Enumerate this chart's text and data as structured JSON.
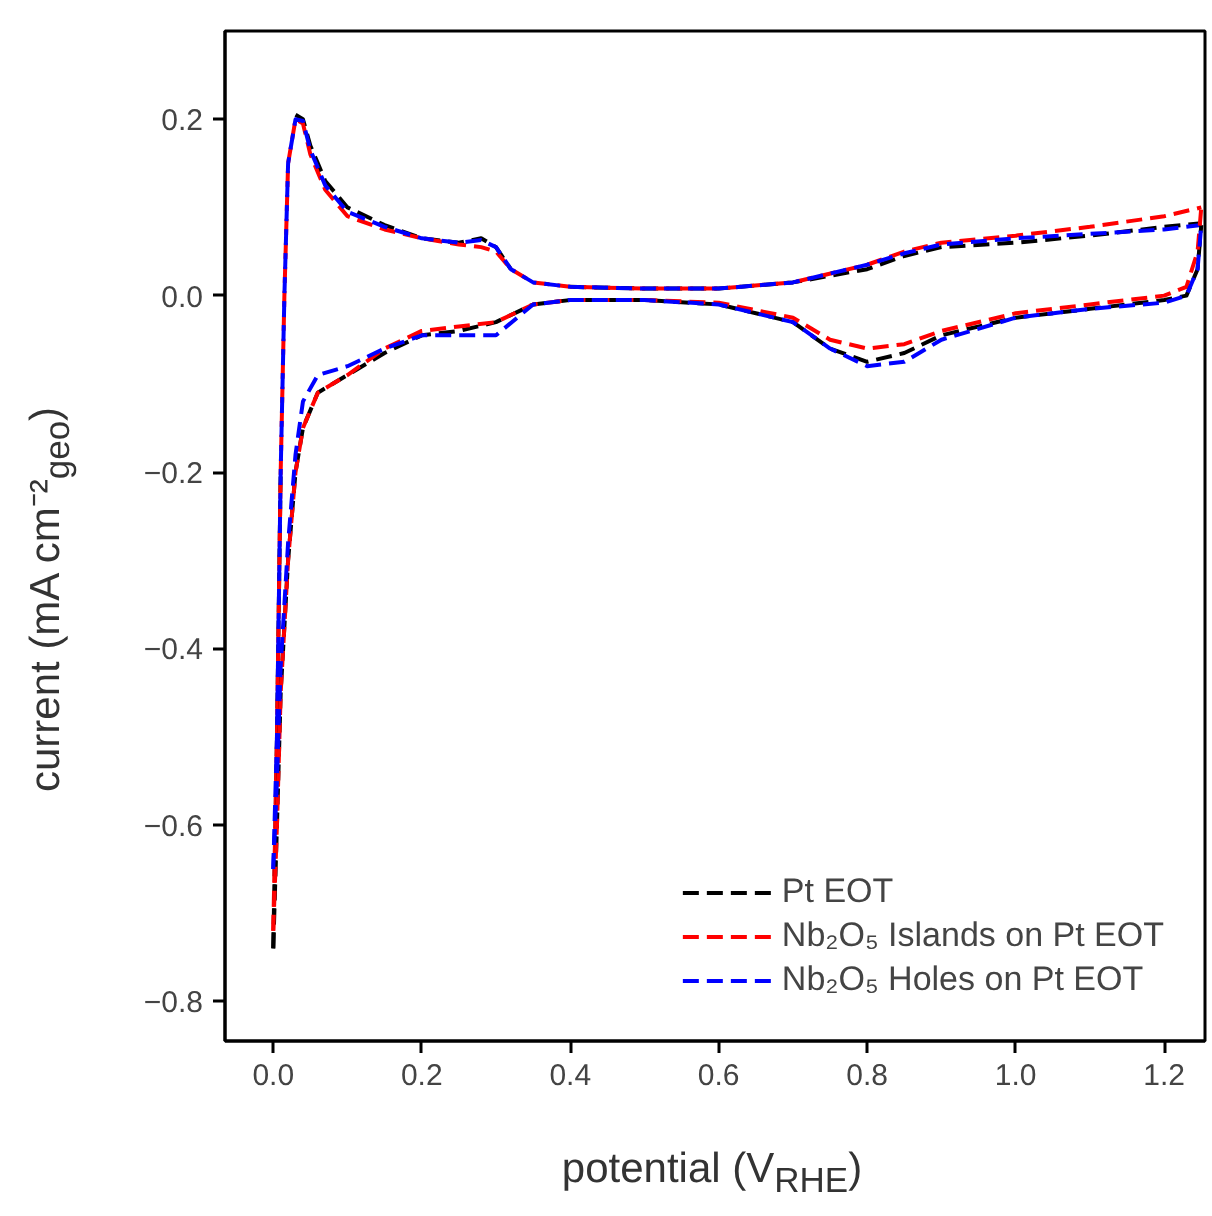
{
  "chart_data": {
    "type": "line",
    "xlabel": "potential (V$_{RHE}$)",
    "ylabel": "current (mA cm⁻²$_{geo}$)",
    "xlim": [
      -0.065,
      1.255
    ],
    "ylim": [
      -0.845,
      0.3
    ],
    "xticks": [
      {
        "value": 0.0,
        "label": "0.0"
      },
      {
        "value": 0.2,
        "label": "0.2"
      },
      {
        "value": 0.4,
        "label": "0.4"
      },
      {
        "value": 0.6,
        "label": "0.6"
      },
      {
        "value": 0.8,
        "label": "0.8"
      },
      {
        "value": 1.0,
        "label": "1.0"
      },
      {
        "value": 1.2,
        "label": "1.2"
      }
    ],
    "yticks": [
      {
        "value": -0.8,
        "label": "−0.8"
      },
      {
        "value": -0.6,
        "label": "−0.6"
      },
      {
        "value": -0.4,
        "label": "−0.4"
      },
      {
        "value": -0.2,
        "label": "−0.2"
      },
      {
        "value": 0.0,
        "label": "0.0"
      },
      {
        "value": 0.2,
        "label": "0.2"
      }
    ],
    "grid": false,
    "legend": "bottom right",
    "line_style": "dashed",
    "marker": "none",
    "series": [
      {
        "name": "Pt EOT",
        "color": "#000000",
        "x": [
          0.0,
          0.005,
          0.01,
          0.015,
          0.02,
          0.03,
          0.04,
          0.05,
          0.07,
          0.1,
          0.15,
          0.2,
          0.25,
          0.28,
          0.3,
          0.32,
          0.35,
          0.4,
          0.5,
          0.6,
          0.7,
          0.8,
          0.85,
          0.9,
          1.0,
          1.1,
          1.2,
          1.25
        ],
        "values": [
          -0.74,
          -0.5,
          -0.2,
          null,
          null,
          0.205,
          0.2,
          0.17,
          0.13,
          0.1,
          0.08,
          0.065,
          0.06,
          0.065,
          0.055,
          0.03,
          null,
          0.01,
          0.008,
          0.008,
          0.015,
          0.03,
          0.045,
          0.055,
          0.06,
          0.068,
          0.078,
          0.082
        ]
      },
      {
        "name": "Nb₂O₅ Islands on Pt EOT",
        "color": "#ff0000",
        "x": [
          0.0,
          0.005,
          0.01,
          0.015,
          0.02,
          0.03,
          0.04,
          0.05,
          0.07,
          0.1,
          0.15,
          0.2,
          0.25,
          0.28,
          0.3,
          0.32,
          0.35,
          0.4,
          0.5,
          0.6,
          0.7,
          0.8,
          0.85,
          0.9,
          1.0,
          1.1,
          1.2,
          1.25
        ],
        "values": [
          -0.72,
          -0.5,
          -0.2,
          0.0,
          0.15,
          0.2,
          0.195,
          0.16,
          0.12,
          0.09,
          0.075,
          0.065,
          0.058,
          0.055,
          0.05,
          0.03,
          0.015,
          0.01,
          0.008,
          0.008,
          0.015,
          0.035,
          0.05,
          0.06,
          0.068,
          0.078,
          0.09,
          0.1
        ]
      },
      {
        "name": "Nb₂O₅ Holes on Pt EOT",
        "color": "#0000ff",
        "x": [
          0.0,
          0.005,
          0.01,
          0.015,
          0.02,
          0.03,
          0.04,
          0.05,
          0.07,
          0.1,
          0.15,
          0.2,
          0.25,
          0.28,
          0.3,
          0.32,
          0.35,
          0.4,
          0.5,
          0.6,
          0.7,
          0.8,
          0.85,
          0.9,
          1.0,
          1.1,
          1.2,
          1.25
        ],
        "values": [
          -0.65,
          -0.5,
          -0.2,
          0.0,
          0.15,
          0.2,
          0.198,
          0.165,
          0.125,
          0.095,
          0.078,
          0.065,
          0.06,
          0.063,
          0.055,
          0.03,
          0.015,
          0.01,
          0.008,
          0.008,
          0.015,
          0.035,
          0.048,
          0.058,
          0.065,
          0.07,
          0.075,
          0.08
        ]
      },
      {
        "color": "#000000",
        "x": [
          0.0,
          0.005,
          0.01,
          0.02,
          0.03,
          0.04,
          0.06,
          0.1,
          0.15,
          0.2,
          0.25,
          0.3,
          0.35,
          0.4,
          0.5,
          0.6,
          0.7,
          0.75,
          0.8,
          0.85,
          0.9,
          1.0,
          1.1,
          1.2,
          1.23,
          1.245,
          1.25
        ],
        "values": [
          -0.74,
          -0.6,
          -0.45,
          -0.3,
          -0.2,
          -0.15,
          -0.11,
          -0.09,
          -0.065,
          -0.045,
          -0.04,
          -0.03,
          -0.01,
          -0.005,
          -0.005,
          -0.01,
          -0.03,
          -0.06,
          -0.075,
          -0.065,
          -0.045,
          -0.025,
          -0.015,
          -0.005,
          0.0,
          0.03,
          0.08
        ]
      },
      {
        "color": "#ff0000",
        "x": [
          0.0,
          0.005,
          0.01,
          0.02,
          0.03,
          0.04,
          0.06,
          0.1,
          0.15,
          0.2,
          0.25,
          0.3,
          0.35,
          0.4,
          0.5,
          0.6,
          0.7,
          0.75,
          0.8,
          0.85,
          0.9,
          1.0,
          1.1,
          1.2,
          1.23,
          1.245,
          1.25
        ],
        "values": [
          -0.72,
          -0.6,
          -0.45,
          -0.3,
          -0.2,
          -0.15,
          -0.11,
          -0.09,
          -0.06,
          -0.04,
          -0.035,
          -0.03,
          -0.01,
          -0.005,
          -0.005,
          -0.008,
          -0.025,
          -0.05,
          -0.06,
          -0.055,
          -0.04,
          -0.02,
          -0.01,
          0.0,
          0.01,
          0.05,
          0.1
        ]
      },
      {
        "color": "#0000ff",
        "x": [
          0.0,
          0.005,
          0.01,
          0.02,
          0.03,
          0.04,
          0.06,
          0.1,
          0.15,
          0.2,
          0.25,
          0.3,
          0.35,
          0.4,
          0.5,
          0.6,
          0.7,
          0.75,
          0.8,
          0.85,
          0.9,
          1.0,
          1.1,
          1.2,
          1.23,
          1.245,
          1.25
        ],
        "values": [
          -0.65,
          -0.55,
          -0.42,
          -0.28,
          -0.18,
          -0.12,
          -0.09,
          -0.08,
          -0.06,
          -0.045,
          -0.045,
          -0.045,
          -0.01,
          -0.005,
          -0.005,
          -0.01,
          -0.03,
          -0.06,
          -0.08,
          -0.075,
          -0.05,
          -0.025,
          -0.015,
          -0.008,
          0.0,
          0.03,
          0.08
        ]
      }
    ]
  }
}
